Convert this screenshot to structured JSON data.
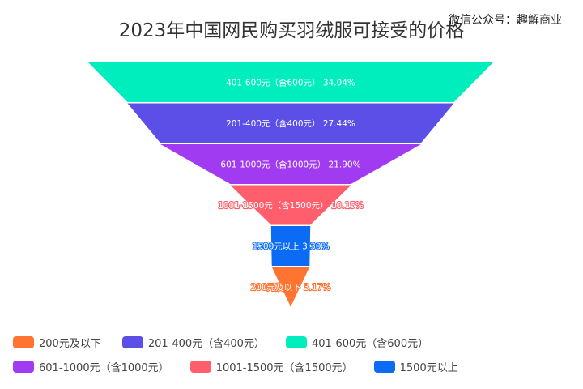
{
  "watermark": "微信公众号：趣解商业",
  "chart_data": {
    "type": "funnel",
    "title": "2023年中国网民购买羽绒服可接受的价格",
    "segments": [
      {
        "name": "401-600元（含600元）",
        "value": 34.04,
        "color": "#00EEBE"
      },
      {
        "name": "201-400元（含400元）",
        "value": 27.44,
        "color": "#5B4FE8"
      },
      {
        "name": "601-1000元（含1000元）",
        "value": 21.9,
        "color": "#A13BF2"
      },
      {
        "name": "1001-1500元（含1500元）",
        "value": 10.15,
        "color": "#FF5E6C"
      },
      {
        "name": "1500元以上",
        "value": 3.3,
        "color": "#0B6BF5"
      },
      {
        "name": "200元及以下",
        "value": 3.17,
        "color": "#FF7431"
      }
    ],
    "labels": [
      "401-600元（含600元） 34.04%",
      "201-400元（含400元） 27.44%",
      "601-1000元（含1000元） 21.90%",
      "1001-1500元（含1500元） 10.15%",
      "1500元以上 3.30%",
      "200元及以下 3.17%"
    ],
    "legend": [
      {
        "label": "200元及以下",
        "color": "#FF7431"
      },
      {
        "label": "201-400元（含400元）",
        "color": "#5B4FE8"
      },
      {
        "label": "401-600元（含600元）",
        "color": "#00EEBE"
      },
      {
        "label": "601-1000元（含1000元）",
        "color": "#A13BF2"
      },
      {
        "label": "1001-1500元（含1500元）",
        "color": "#FF5E6C"
      },
      {
        "label": "1500元以上",
        "color": "#0B6BF5"
      }
    ]
  }
}
